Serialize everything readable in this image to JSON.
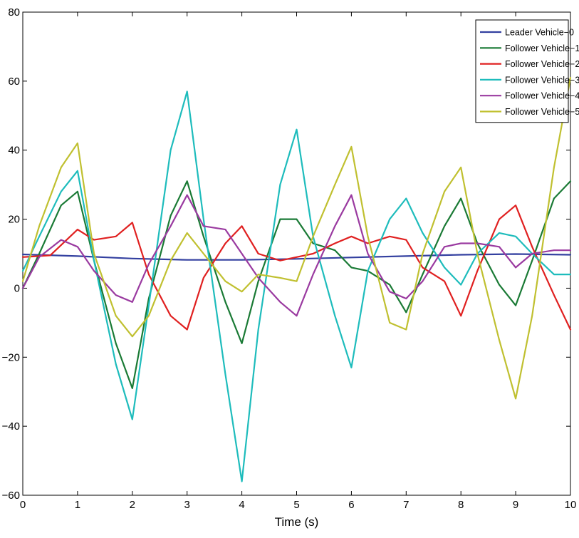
{
  "chart_data": {
    "type": "line",
    "title": "",
    "xlabel": "Time (s)",
    "ylabel": "",
    "xlim": [
      0,
      10
    ],
    "ylim": [
      -60,
      80
    ],
    "x_ticks": [
      0,
      1,
      2,
      3,
      4,
      5,
      6,
      7,
      8,
      9,
      10
    ],
    "y_ticks": [
      -60,
      -40,
      -20,
      0,
      20,
      40,
      60,
      80
    ],
    "x_tick_labels": [
      "0",
      "1",
      "2",
      "3",
      "4",
      "5",
      "6",
      "7",
      "8",
      "9",
      "10"
    ],
    "y_tick_labels": [
      "−60",
      "−40",
      "−20",
      "0",
      "20",
      "40",
      "60",
      "80"
    ],
    "grid": false,
    "legend_position": "top-right",
    "series": [
      {
        "name": "Leader Vehicle−0",
        "color": "#3340a0",
        "x": [
          0,
          1,
          2,
          3,
          4,
          5,
          6,
          7,
          8,
          9,
          10
        ],
        "y": [
          9.8,
          9.3,
          8.6,
          8.2,
          8.2,
          8.5,
          8.9,
          9.3,
          9.7,
          9.9,
          9.7
        ]
      },
      {
        "name": "Follower Vehicle−1",
        "color": "#1a7a35",
        "x": [
          0,
          0.3,
          0.7,
          1.0,
          1.3,
          1.7,
          2.0,
          2.3,
          2.7,
          3.0,
          3.3,
          3.7,
          4.0,
          4.3,
          4.7,
          5.0,
          5.3,
          5.7,
          6.0,
          6.3,
          6.7,
          7.0,
          7.3,
          7.7,
          8.0,
          8.3,
          8.7,
          9.0,
          9.3,
          9.7,
          10.0
        ],
        "y": [
          0,
          10,
          24,
          28,
          8,
          -16,
          -29,
          -3,
          21,
          31,
          15,
          -4,
          -16,
          2,
          20,
          20,
          13,
          11,
          6,
          5,
          1,
          -7,
          4,
          18,
          26,
          13,
          1,
          -5,
          8,
          26,
          31
        ]
      },
      {
        "name": "Follower Vehicle−2",
        "color": "#e02020",
        "x": [
          0,
          0.5,
          1.0,
          1.3,
          1.7,
          2.0,
          2.3,
          2.7,
          3.0,
          3.3,
          3.7,
          4.0,
          4.3,
          4.7,
          5.0,
          5.3,
          5.7,
          6.0,
          6.3,
          6.7,
          7.0,
          7.3,
          7.7,
          8.0,
          8.3,
          8.7,
          9.0,
          9.3,
          9.7,
          10.0
        ],
        "y": [
          9,
          9.5,
          17,
          14,
          15,
          19,
          4,
          -8,
          -12,
          3,
          13,
          18,
          10,
          8,
          9,
          10,
          13,
          15,
          13,
          15,
          14,
          6,
          2,
          -8,
          5,
          20,
          24,
          12,
          -2,
          -12
        ]
      },
      {
        "name": "Follower Vehicle−3",
        "color": "#1ebcbc",
        "x": [
          0,
          0.3,
          0.7,
          1.0,
          1.3,
          1.7,
          2.0,
          2.3,
          2.7,
          3.0,
          3.3,
          3.7,
          4.0,
          4.3,
          4.7,
          5.0,
          5.3,
          5.7,
          6.0,
          6.3,
          6.7,
          7.0,
          7.3,
          7.7,
          8.0,
          8.3,
          8.7,
          9.0,
          9.3,
          9.7,
          10.0
        ],
        "y": [
          5,
          15,
          28,
          34,
          8,
          -22,
          -38,
          -5,
          40,
          57,
          20,
          -25,
          -56,
          -12,
          30,
          46,
          15,
          -8,
          -23,
          5,
          20,
          26,
          16,
          6,
          1,
          10,
          16,
          15,
          10,
          4,
          4
        ]
      },
      {
        "name": "Follower Vehicle−4",
        "color": "#9a3aa0",
        "x": [
          0,
          0.3,
          0.7,
          1.0,
          1.3,
          1.7,
          2.0,
          2.3,
          2.7,
          3.0,
          3.3,
          3.7,
          4.0,
          4.3,
          4.7,
          5.0,
          5.3,
          5.7,
          6.0,
          6.3,
          6.7,
          7.0,
          7.3,
          7.7,
          8.0,
          8.3,
          8.7,
          9.0,
          9.3,
          9.7,
          10.0
        ],
        "y": [
          0,
          9,
          14,
          12,
          5,
          -2,
          -4,
          7,
          18,
          27,
          18,
          17,
          10,
          3,
          -4,
          -8,
          4,
          18,
          27,
          10,
          -1,
          -3,
          2,
          12,
          13,
          13,
          12,
          6,
          10,
          11,
          11
        ]
      },
      {
        "name": "Follower Vehicle−5",
        "color": "#c0c030",
        "x": [
          0,
          0.3,
          0.7,
          1.0,
          1.3,
          1.7,
          2.0,
          2.3,
          2.7,
          3.0,
          3.3,
          3.7,
          4.0,
          4.3,
          4.7,
          5.0,
          5.3,
          5.7,
          6.0,
          6.3,
          6.7,
          7.0,
          7.3,
          7.7,
          8.0,
          8.3,
          8.7,
          9.0,
          9.3,
          9.7,
          10.0
        ],
        "y": [
          2,
          18,
          35,
          42,
          10,
          -8,
          -14,
          -8,
          8,
          16,
          10,
          2,
          -1,
          4,
          3,
          2,
          15,
          30,
          41,
          15,
          -10,
          -12,
          10,
          28,
          35,
          10,
          -15,
          -32,
          -8,
          35,
          61
        ]
      }
    ]
  }
}
